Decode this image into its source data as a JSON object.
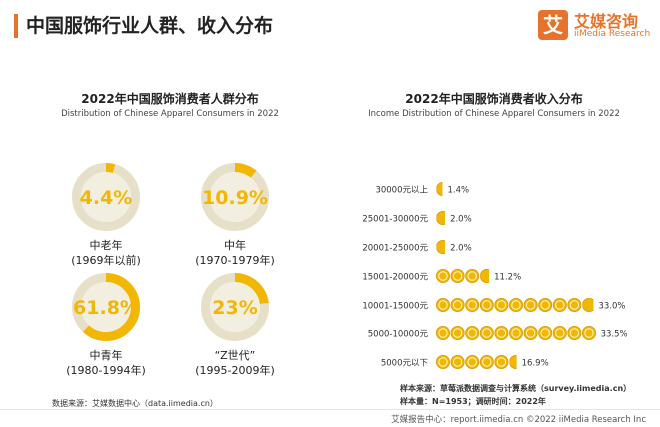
{
  "header": {
    "title": "中国服饰行业人群、收入分布",
    "brand_mark": "艾",
    "brand_name": "艾媒咨询",
    "brand_sub": "iiMedia Research"
  },
  "left": {
    "title": "2022年中国服饰消费者人群分布",
    "subtitle": "Distribution of Chinese Apparel Consumers in 2022",
    "source": "数据来源：艾媒数据中心（data.iimedia.cn）"
  },
  "right": {
    "title": "2022年中国服饰消费者收入分布",
    "subtitle": "Income Distribution of Chinese Apparel Consumers in 2022",
    "source": "样本来源：草莓派数据调查与计算系统（survey.iimedia.cn）",
    "sample": "样本量：N=1953；调研时间：2022年"
  },
  "footer": {
    "text": "艾媒报告中心：report.iimedia.cn ©2022 iiMedia Research Inc"
  },
  "colors": {
    "accent": "#e8722b",
    "gold": "#f2b705",
    "gold_dark": "#d99a04",
    "donut_bg": "#e6e0c9"
  },
  "chart_data": [
    {
      "type": "pie",
      "title": "2022年中国服饰消费者人群分布",
      "categories": [
        "中老年\n(1969年以前)",
        "中年\n(1970-1979年)",
        "中青年\n(1980-1994年)",
        "“Z世代”\n(1995-2009年)"
      ],
      "values": [
        4.4,
        10.9,
        61.8,
        23
      ],
      "labels": [
        "4.4%",
        "10.9%",
        "61.8%",
        "23%"
      ],
      "name_lines": [
        [
          "中老年",
          "(1969年以前)"
        ],
        [
          "中年",
          "(1970-1979年)"
        ],
        [
          "中青年",
          "(1980-1994年)"
        ],
        [
          "“Z世代”",
          "(1995-2009年)"
        ]
      ],
      "unit": "%"
    },
    {
      "type": "bar",
      "title": "2022年中国服饰消费者收入分布",
      "categories": [
        "30000元以上",
        "25001-30000元",
        "20001-25000元",
        "15001-20000元",
        "10001-15000元",
        "5000-10000元",
        "5000元以下"
      ],
      "values": [
        1.4,
        2.0,
        2.0,
        11.2,
        33.0,
        33.5,
        16.9
      ],
      "labels": [
        "1.4%",
        "2.0%",
        "2.0%",
        "11.2%",
        "33.0%",
        "33.5%",
        "16.9%"
      ],
      "unit": "%"
    }
  ]
}
